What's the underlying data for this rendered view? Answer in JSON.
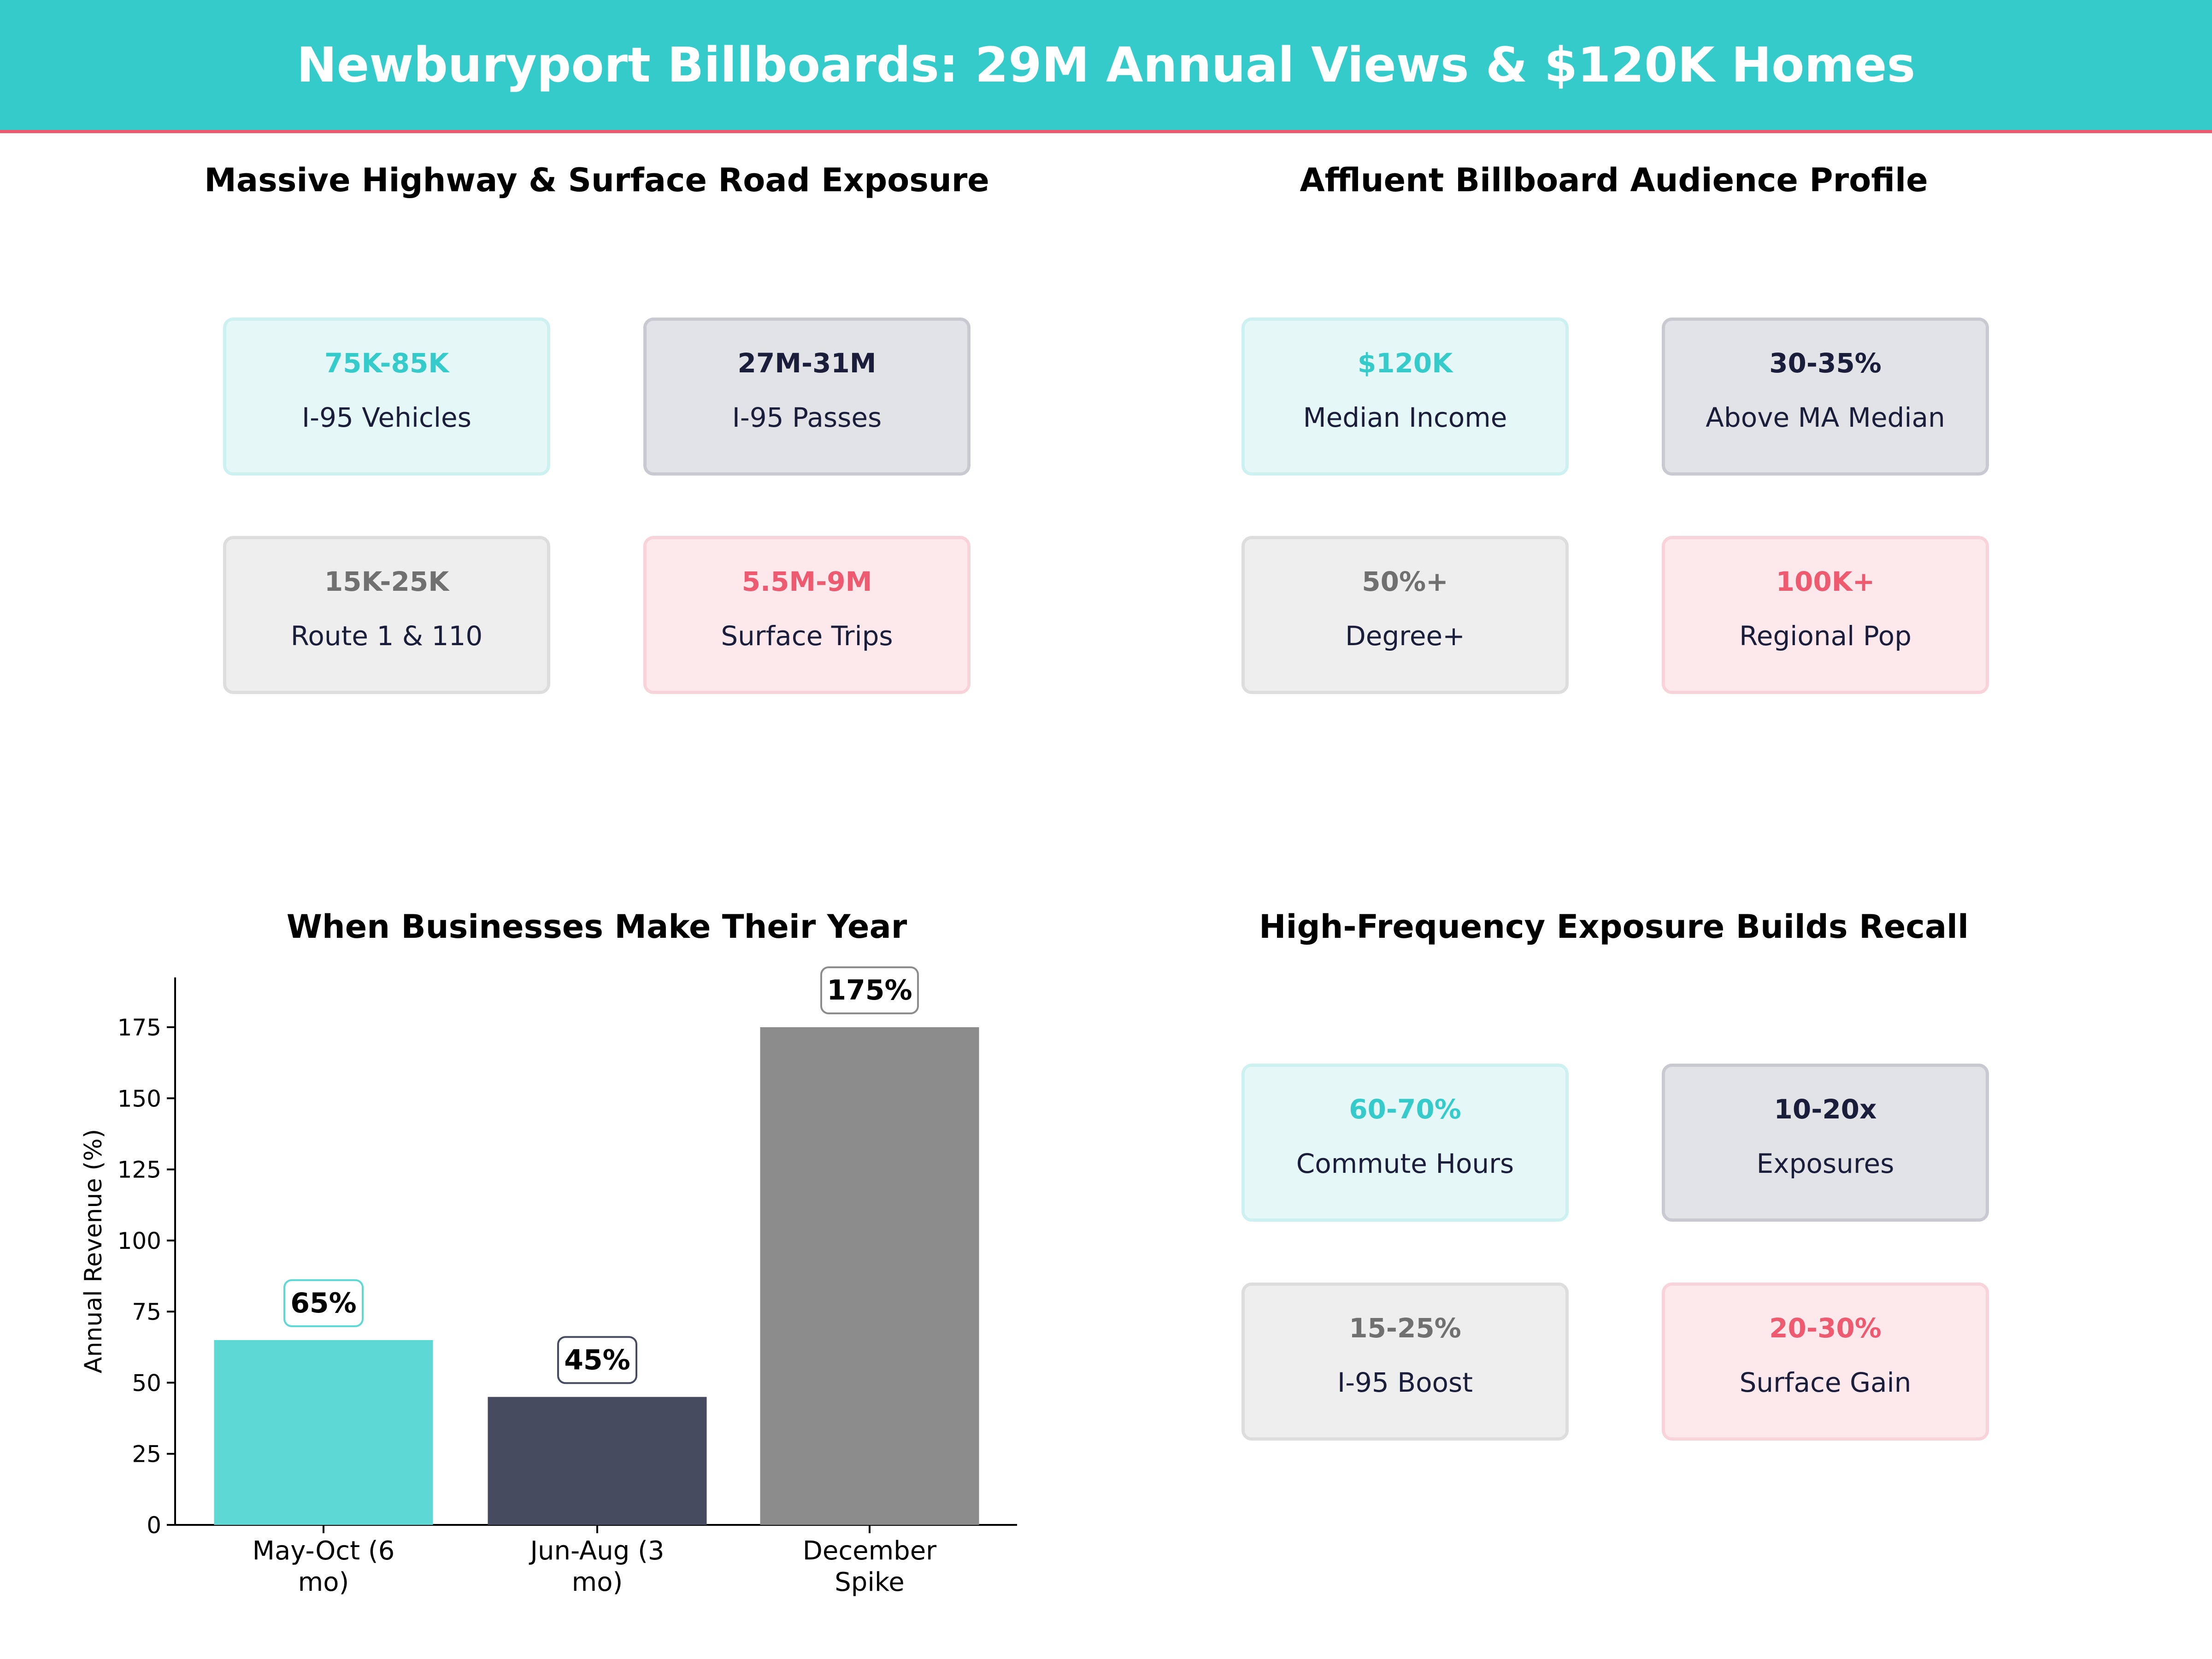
{
  "header": {
    "title": "Newburyport Billboards: 29M Annual Views & $120K Homes",
    "bg_color": "#36CBCB",
    "accent_color": "#EE5A70"
  },
  "panels": [
    {
      "title": "Massive Highway & Surface Road Exposure",
      "cards": [
        {
          "value": "75K-85K",
          "label": "I-95 Vehicles"
        },
        {
          "value": "27M-31M",
          "label": "I-95 Passes"
        },
        {
          "value": "15K-25K",
          "label": "Route 1 & 110"
        },
        {
          "value": "5.5M-9M",
          "label": "Surface Trips"
        }
      ]
    },
    {
      "title": "Affluent Billboard Audience Profile",
      "cards": [
        {
          "value": "$120K",
          "label": "Median Income"
        },
        {
          "value": "30-35%",
          "label": "Above MA Median"
        },
        {
          "value": "50%+",
          "label": "Degree+"
        },
        {
          "value": "100K+",
          "label": "Regional Pop"
        }
      ]
    },
    {
      "title": "High-Frequency Exposure Builds Recall",
      "cards": [
        {
          "value": "60-70%",
          "label": "Commute Hours"
        },
        {
          "value": "10-20x",
          "label": "Exposures"
        },
        {
          "value": "15-25%",
          "label": "I-95 Boost"
        },
        {
          "value": "20-30%",
          "label": "Surface Gain"
        }
      ]
    }
  ],
  "chart_data": {
    "type": "bar",
    "title": "When Businesses Make Their Year",
    "categories": [
      [
        "May-Oct (6",
        "mo)"
      ],
      [
        "Jun-Aug (3",
        "mo)"
      ],
      [
        "December",
        "Spike"
      ]
    ],
    "values": [
      65,
      45,
      175
    ],
    "data_labels": [
      "65%",
      "45%",
      "175%"
    ],
    "colors": [
      "#5DD8D5",
      "#464B60",
      "#8C8C8C"
    ],
    "label_border_colors": [
      "#5DD8D5",
      "#464B60",
      "#8C8C8C"
    ],
    "xlabel": "",
    "ylabel": "Annual Revenue (%)",
    "ylim": [
      0,
      192.5
    ],
    "yticks": [
      0,
      25,
      50,
      75,
      100,
      125,
      150,
      175
    ],
    "grid": false
  }
}
